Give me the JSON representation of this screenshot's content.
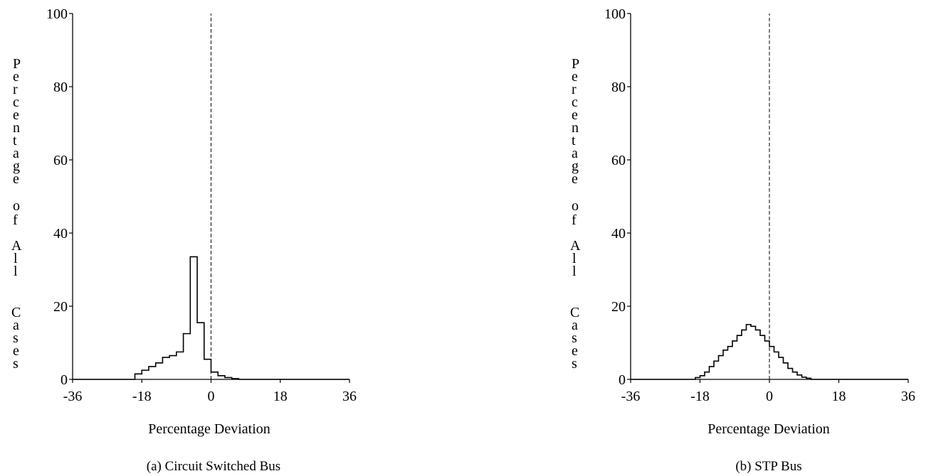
{
  "chart_data": [
    {
      "type": "histogram",
      "caption": "(a) Circuit Switched Bus",
      "xlabel": "Percentage Deviation",
      "ylabel": "Percentage of All Cases",
      "xlim": [
        -36,
        36
      ],
      "ylim": [
        0,
        100
      ],
      "x_ticks": [
        "-36",
        "-18",
        "0",
        "18",
        "36"
      ],
      "y_ticks": [
        "0",
        "20",
        "40",
        "60",
        "80",
        "100"
      ],
      "reference_line": {
        "x": 0,
        "style": "dashed"
      },
      "bin_width": 1.8,
      "bins": [
        {
          "x": -19.8,
          "y": 1.5
        },
        {
          "x": -18.0,
          "y": 2.5
        },
        {
          "x": -16.2,
          "y": 3.5
        },
        {
          "x": -14.4,
          "y": 4.5
        },
        {
          "x": -12.6,
          "y": 6.0
        },
        {
          "x": -10.8,
          "y": 6.5
        },
        {
          "x": -9.0,
          "y": 7.5
        },
        {
          "x": -7.2,
          "y": 12.5
        },
        {
          "x": -5.4,
          "y": 33.5
        },
        {
          "x": -3.6,
          "y": 15.5
        },
        {
          "x": -1.8,
          "y": 5.5
        },
        {
          "x": 0.0,
          "y": 2.0
        },
        {
          "x": 1.8,
          "y": 1.0
        },
        {
          "x": 3.6,
          "y": 0.5
        },
        {
          "x": 5.4,
          "y": 0.2
        }
      ]
    },
    {
      "type": "histogram",
      "caption": "(b) STP Bus",
      "xlabel": "Percentage Deviation",
      "ylabel": "Percentage of All Cases",
      "xlim": [
        -36,
        36
      ],
      "ylim": [
        0,
        100
      ],
      "x_ticks": [
        "-36",
        "-18",
        "0",
        "18",
        "36"
      ],
      "y_ticks": [
        "0",
        "20",
        "40",
        "60",
        "80",
        "100"
      ],
      "reference_line": {
        "x": 0,
        "style": "dashed"
      },
      "bin_width": 1.2,
      "bins": [
        {
          "x": -19.2,
          "y": 0.5
        },
        {
          "x": -18.0,
          "y": 1.0
        },
        {
          "x": -16.8,
          "y": 2.0
        },
        {
          "x": -15.6,
          "y": 3.5
        },
        {
          "x": -14.4,
          "y": 5.0
        },
        {
          "x": -13.2,
          "y": 6.5
        },
        {
          "x": -12.0,
          "y": 8.0
        },
        {
          "x": -10.8,
          "y": 9.0
        },
        {
          "x": -9.6,
          "y": 10.5
        },
        {
          "x": -8.4,
          "y": 12.0
        },
        {
          "x": -7.2,
          "y": 13.5
        },
        {
          "x": -6.0,
          "y": 15.0
        },
        {
          "x": -4.8,
          "y": 14.5
        },
        {
          "x": -3.6,
          "y": 13.5
        },
        {
          "x": -2.4,
          "y": 12.0
        },
        {
          "x": -1.2,
          "y": 10.5
        },
        {
          "x": 0.0,
          "y": 9.0
        },
        {
          "x": 1.2,
          "y": 7.5
        },
        {
          "x": 2.4,
          "y": 6.0
        },
        {
          "x": 3.6,
          "y": 4.5
        },
        {
          "x": 4.8,
          "y": 3.0
        },
        {
          "x": 6.0,
          "y": 2.0
        },
        {
          "x": 7.2,
          "y": 1.2
        },
        {
          "x": 8.4,
          "y": 0.6
        },
        {
          "x": 9.6,
          "y": 0.3
        }
      ]
    }
  ]
}
